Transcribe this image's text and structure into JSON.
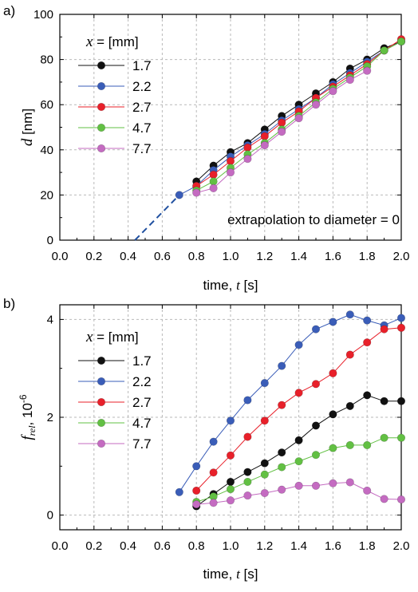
{
  "chart_data": [
    {
      "type": "line",
      "panel_label": "a)",
      "xlabel": "time, t [s]",
      "xlabel_parts": {
        "prefix": "time, ",
        "var": "t",
        "suffix": " [s]"
      },
      "ylabel": "d [nm]",
      "ylabel_parts": {
        "var": "d",
        "suffix": " [nm]"
      },
      "xlim": [
        0.0,
        2.0
      ],
      "ylim": [
        0,
        100
      ],
      "xticks": [
        "0.0",
        "0.2",
        "0.4",
        "0.6",
        "0.8",
        "1.0",
        "1.2",
        "1.4",
        "1.6",
        "1.8",
        "2.0"
      ],
      "yticks": [
        "0",
        "20",
        "40",
        "60",
        "80",
        "100"
      ],
      "grid": true,
      "legend_title": "x = [mm]",
      "legend_title_parts": {
        "var": "x",
        "suffix": " = [mm]"
      },
      "legend_position": "top-left",
      "annotation": "extrapolation to diameter = 0",
      "extrapolation": {
        "x": [
          0.44,
          0.7
        ],
        "y": [
          0,
          20
        ],
        "color": "#2050a0",
        "style": "dashed"
      },
      "series": [
        {
          "name": "1.7",
          "color": "#111111",
          "x": [
            0.8,
            0.9,
            1.0,
            1.1,
            1.2,
            1.3,
            1.4,
            1.5,
            1.6,
            1.7,
            1.8,
            1.9,
            2.0
          ],
          "y": [
            26,
            33,
            39,
            43,
            49,
            55,
            60,
            65,
            70,
            76,
            80,
            85,
            88
          ]
        },
        {
          "name": "2.2",
          "color": "#3a5db8",
          "x": [
            0.7,
            0.8,
            0.9,
            1.0,
            1.1,
            1.2,
            1.3,
            1.4,
            1.5,
            1.6,
            1.7,
            1.8,
            1.9,
            2.0
          ],
          "y": [
            20,
            24,
            31,
            37,
            42,
            47,
            53,
            58,
            63,
            69,
            74,
            79,
            84,
            88
          ]
        },
        {
          "name": "2.7",
          "color": "#e8202a",
          "x": [
            0.8,
            0.9,
            1.0,
            1.1,
            1.2,
            1.3,
            1.4,
            1.5,
            1.6,
            1.7,
            1.8,
            1.9,
            2.0
          ],
          "y": [
            24,
            29,
            35,
            41,
            46,
            52,
            57,
            63,
            68,
            73,
            78,
            84,
            89
          ]
        },
        {
          "name": "4.7",
          "color": "#62c043",
          "x": [
            0.8,
            0.9,
            1.0,
            1.1,
            1.2,
            1.3,
            1.4,
            1.5,
            1.6,
            1.7,
            1.8,
            1.9,
            2.0
          ],
          "y": [
            22,
            26,
            32,
            38,
            43,
            49,
            55,
            61,
            67,
            72,
            77,
            84,
            88
          ]
        },
        {
          "name": "7.7",
          "color": "#c46bc1",
          "x": [
            0.8,
            0.9,
            1.0,
            1.1,
            1.2,
            1.3,
            1.4,
            1.5,
            1.6,
            1.7,
            1.8
          ],
          "y": [
            21,
            23,
            30,
            36,
            42,
            48,
            54,
            60,
            66,
            71,
            75
          ]
        }
      ]
    },
    {
      "type": "line",
      "panel_label": "b)",
      "xlabel": "time, t [s]",
      "xlabel_parts": {
        "prefix": "time, ",
        "var": "t",
        "suffix": " [s]"
      },
      "ylabel": "f_rel, 10^-6",
      "ylabel_parts": {
        "var": "f",
        "sub": "rel",
        "mid": ", 10",
        "sup": "-6"
      },
      "xlim": [
        0.0,
        2.0
      ],
      "ylim": [
        -0.3,
        4.3
      ],
      "xticks": [
        "0.0",
        "0.2",
        "0.4",
        "0.6",
        "0.8",
        "1.0",
        "1.2",
        "1.4",
        "1.6",
        "1.8",
        "2.0"
      ],
      "yticks": [
        "0",
        "2",
        "4"
      ],
      "grid": true,
      "legend_title": "x = [mm]",
      "legend_title_parts": {
        "var": "x",
        "suffix": " = [mm]"
      },
      "legend_position": "top-left",
      "series": [
        {
          "name": "1.7",
          "color": "#111111",
          "x": [
            0.8,
            0.9,
            1.0,
            1.1,
            1.2,
            1.3,
            1.4,
            1.5,
            1.6,
            1.7,
            1.8,
            1.9,
            2.0
          ],
          "y": [
            0.18,
            0.43,
            0.68,
            0.88,
            1.06,
            1.28,
            1.53,
            1.83,
            2.06,
            2.23,
            2.45,
            2.33,
            2.33
          ]
        },
        {
          "name": "2.2",
          "color": "#3a5db8",
          "x": [
            0.7,
            0.8,
            0.9,
            1.0,
            1.1,
            1.2,
            1.3,
            1.4,
            1.5,
            1.6,
            1.7,
            1.8,
            1.9,
            2.0
          ],
          "y": [
            0.47,
            1.0,
            1.5,
            1.93,
            2.35,
            2.7,
            3.05,
            3.48,
            3.8,
            3.95,
            4.1,
            3.98,
            3.88,
            4.03
          ]
        },
        {
          "name": "2.7",
          "color": "#e8202a",
          "x": [
            0.8,
            0.9,
            1.0,
            1.1,
            1.2,
            1.3,
            1.4,
            1.5,
            1.6,
            1.7,
            1.8,
            1.9,
            2.0
          ],
          "y": [
            0.5,
            0.87,
            1.22,
            1.6,
            1.93,
            2.25,
            2.5,
            2.68,
            2.9,
            3.28,
            3.53,
            3.8,
            3.83
          ]
        },
        {
          "name": "4.7",
          "color": "#62c043",
          "x": [
            0.8,
            0.9,
            1.0,
            1.1,
            1.2,
            1.3,
            1.4,
            1.5,
            1.6,
            1.7,
            1.8,
            1.9,
            2.0
          ],
          "y": [
            0.27,
            0.38,
            0.53,
            0.68,
            0.83,
            0.98,
            1.1,
            1.23,
            1.37,
            1.43,
            1.43,
            1.58,
            1.58
          ]
        },
        {
          "name": "7.7",
          "color": "#c46bc1",
          "x": [
            0.8,
            0.9,
            1.0,
            1.1,
            1.2,
            1.3,
            1.4,
            1.5,
            1.6,
            1.7,
            1.8,
            1.9,
            2.0
          ],
          "y": [
            0.22,
            0.25,
            0.3,
            0.4,
            0.45,
            0.52,
            0.6,
            0.6,
            0.65,
            0.67,
            0.5,
            0.33,
            0.32
          ]
        }
      ]
    }
  ]
}
